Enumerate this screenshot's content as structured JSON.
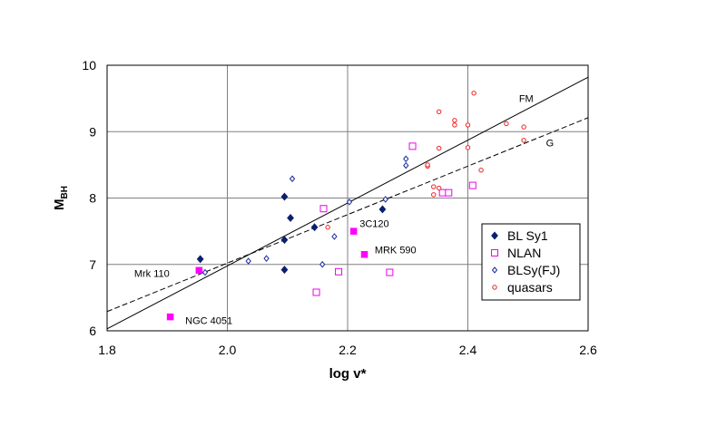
{
  "chart_data": {
    "type": "scatter",
    "xlabel": "log v*",
    "ylabel_main": "M",
    "ylabel_sub": "BH",
    "xlim": [
      1.8,
      2.6
    ],
    "ylim": [
      6,
      10
    ],
    "x_ticks": [
      "1.8",
      "2.0",
      "2.2",
      "2.4",
      "2.6"
    ],
    "x_tick_values": [
      1.8,
      2.0,
      2.2,
      2.4,
      2.6
    ],
    "y_ticks": [
      "6",
      "7",
      "8",
      "9",
      "10"
    ],
    "y_tick_values": [
      6,
      7,
      8,
      9,
      10
    ],
    "grid": true,
    "legend_position": "right",
    "series": [
      {
        "name": "BL Sy1",
        "marker": "filled-diamond",
        "color": "#0a1f6e",
        "points": [
          [
            1.955,
            7.08
          ],
          [
            2.095,
            8.02
          ],
          [
            2.105,
            7.7
          ],
          [
            2.095,
            7.37
          ],
          [
            2.095,
            6.92
          ],
          [
            2.145,
            7.56
          ],
          [
            2.258,
            7.83
          ]
        ]
      },
      {
        "name": "NLAN",
        "marker": "open-square",
        "color": "#ee00ee",
        "points": [
          [
            2.16,
            7.84
          ],
          [
            2.148,
            6.58
          ],
          [
            2.185,
            6.89
          ],
          [
            2.27,
            6.88
          ],
          [
            2.308,
            8.78
          ],
          [
            2.358,
            8.08
          ],
          [
            2.368,
            8.08
          ],
          [
            2.408,
            8.19
          ]
        ]
      },
      {
        "name": "BLSy(FJ)",
        "marker": "open-diamond",
        "color": "#1a2a9a",
        "points": [
          [
            1.963,
            6.88
          ],
          [
            2.035,
            7.05
          ],
          [
            2.065,
            7.09
          ],
          [
            2.108,
            8.29
          ],
          [
            2.158,
            7.0
          ],
          [
            2.178,
            7.42
          ],
          [
            2.203,
            7.94
          ],
          [
            2.263,
            7.98
          ],
          [
            2.297,
            8.49
          ],
          [
            2.297,
            8.59
          ]
        ]
      },
      {
        "name": "quasars",
        "marker": "open-circle",
        "color": "#ee2222",
        "points": [
          [
            2.167,
            7.56
          ],
          [
            2.333,
            8.48
          ],
          [
            2.333,
            8.5
          ],
          [
            2.343,
            8.05
          ],
          [
            2.343,
            8.17
          ],
          [
            2.352,
            8.15
          ],
          [
            2.352,
            8.75
          ],
          [
            2.352,
            9.3
          ],
          [
            2.378,
            9.1
          ],
          [
            2.378,
            9.17
          ],
          [
            2.4,
            8.76
          ],
          [
            2.4,
            9.1
          ],
          [
            2.41,
            9.58
          ],
          [
            2.422,
            8.42
          ],
          [
            2.464,
            9.12
          ],
          [
            2.493,
            8.87
          ],
          [
            2.493,
            9.07
          ]
        ]
      }
    ],
    "highlighted": {
      "color": "#ff00ff",
      "marker": "filled-square",
      "points": [
        [
          1.953,
          6.91
        ],
        [
          1.905,
          6.21
        ],
        [
          2.21,
          7.5
        ],
        [
          2.228,
          7.15
        ]
      ]
    },
    "fit_lines": [
      {
        "label": "FM",
        "style": "solid",
        "x": [
          1.8,
          2.6
        ],
        "y": [
          6.03,
          9.82
        ]
      },
      {
        "label": "G",
        "style": "dashed",
        "x": [
          1.8,
          2.6
        ],
        "y": [
          6.29,
          9.21
        ]
      }
    ],
    "annotations": [
      {
        "text": "Mrk 110",
        "x": 1.845,
        "y": 6.87
      },
      {
        "text": "NGC 4051",
        "x": 1.93,
        "y": 6.16
      },
      {
        "text": "3C120",
        "x": 2.22,
        "y": 7.62
      },
      {
        "text": "MRK 590",
        "x": 2.245,
        "y": 7.22
      },
      {
        "text": "FM",
        "x": 2.485,
        "y": 9.5
      },
      {
        "text": "G",
        "x": 2.53,
        "y": 8.83
      }
    ]
  }
}
